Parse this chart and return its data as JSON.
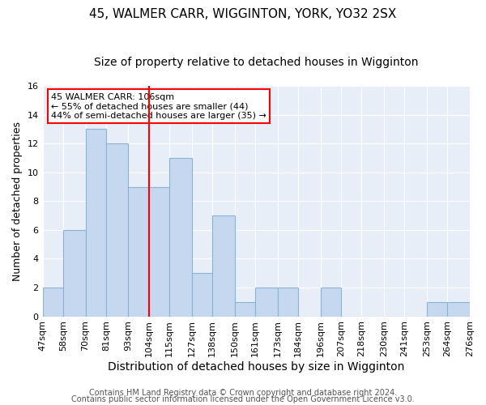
{
  "title": "45, WALMER CARR, WIGGINTON, YORK, YO32 2SX",
  "subtitle": "Size of property relative to detached houses in Wigginton",
  "xlabel": "Distribution of detached houses by size in Wigginton",
  "ylabel": "Number of detached properties",
  "bin_edges": [
    47,
    58,
    70,
    81,
    93,
    104,
    115,
    127,
    138,
    150,
    161,
    173,
    184,
    196,
    207,
    218,
    230,
    241,
    253,
    264,
    276
  ],
  "counts": [
    2,
    6,
    13,
    12,
    9,
    9,
    11,
    3,
    7,
    1,
    2,
    2,
    0,
    2,
    0,
    0,
    0,
    0,
    1,
    1
  ],
  "bar_color": "#c5d8ef",
  "bar_edge_color": "#8ab4d4",
  "reference_line_x": 104,
  "reference_line_color": "red",
  "annotation_text": "45 WALMER CARR: 106sqm\n← 55% of detached houses are smaller (44)\n44% of semi-detached houses are larger (35) →",
  "annotation_box_color": "white",
  "annotation_box_edge_color": "red",
  "ylim": [
    0,
    16
  ],
  "yticks": [
    0,
    2,
    4,
    6,
    8,
    10,
    12,
    14,
    16
  ],
  "footer_line1": "Contains HM Land Registry data © Crown copyright and database right 2024.",
  "footer_line2": "Contains public sector information licensed under the Open Government Licence v3.0.",
  "plot_bg_color": "#e8eef8",
  "fig_bg_color": "#ffffff",
  "grid_color": "#ffffff",
  "title_fontsize": 11,
  "subtitle_fontsize": 10,
  "xlabel_fontsize": 10,
  "ylabel_fontsize": 9,
  "tick_label_fontsize": 8,
  "annotation_fontsize": 8,
  "footer_fontsize": 7
}
